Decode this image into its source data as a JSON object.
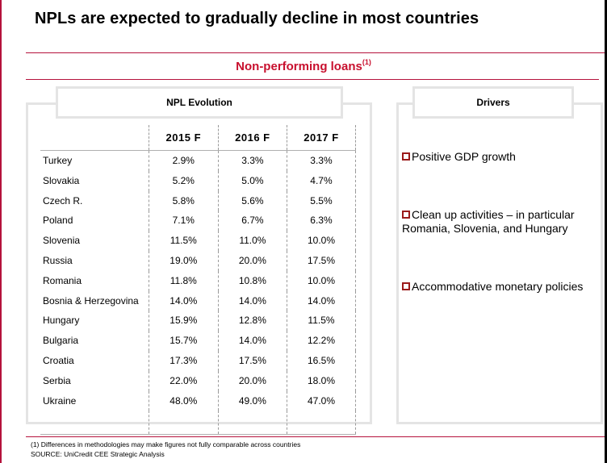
{
  "page": {
    "title": "NPLs are expected to gradually decline in most countries",
    "section_title": "Non-performing loans",
    "section_title_sup": "(1)",
    "accent_color": "#c8102e"
  },
  "npl_panel": {
    "title": "NPL Evolution",
    "columns": [
      "2015 F",
      "2016 F",
      "2017 F"
    ],
    "rows": [
      {
        "country": "Turkey",
        "values": [
          "2.9%",
          "3.3%",
          "3.3%"
        ]
      },
      {
        "country": "Slovakia",
        "values": [
          "5.2%",
          "5.0%",
          "4.7%"
        ]
      },
      {
        "country": "Czech R.",
        "values": [
          "5.8%",
          "5.6%",
          "5.5%"
        ]
      },
      {
        "country": "Poland",
        "values": [
          "7.1%",
          "6.7%",
          "6.3%"
        ]
      },
      {
        "country": "Slovenia",
        "values": [
          "11.5%",
          "11.0%",
          "10.0%"
        ]
      },
      {
        "country": "Russia",
        "values": [
          "19.0%",
          "20.0%",
          "17.5%"
        ]
      },
      {
        "country": "Romania",
        "values": [
          "11.8%",
          "10.8%",
          "10.0%"
        ]
      },
      {
        "country": "Bosnia & Herzegovina",
        "values": [
          "14.0%",
          "14.0%",
          "14.0%"
        ]
      },
      {
        "country": "Hungary",
        "values": [
          "15.9%",
          "12.8%",
          "11.5%"
        ]
      },
      {
        "country": "Bulgaria",
        "values": [
          "15.7%",
          "14.0%",
          "12.2%"
        ]
      },
      {
        "country": "Croatia",
        "values": [
          "17.3%",
          "17.5%",
          "16.5%"
        ]
      },
      {
        "country": "Serbia",
        "values": [
          "22.0%",
          "20.0%",
          "18.0%"
        ]
      },
      {
        "country": "Ukraine",
        "values": [
          "48.0%",
          "49.0%",
          "47.0%"
        ]
      }
    ]
  },
  "drivers_panel": {
    "title": "Drivers",
    "bullet_icon": "hollow-square-bullet",
    "items": [
      "Positive GDP growth",
      "Clean up activities –  in particular Romania, Slovenia, and Hungary",
      "Accommodative monetary policies"
    ]
  },
  "footer": {
    "note": "(1) Differences in methodologies may make figures not fully comparable across countries",
    "source": "SOURCE: UniCredit CEE Strategic Analysis"
  }
}
